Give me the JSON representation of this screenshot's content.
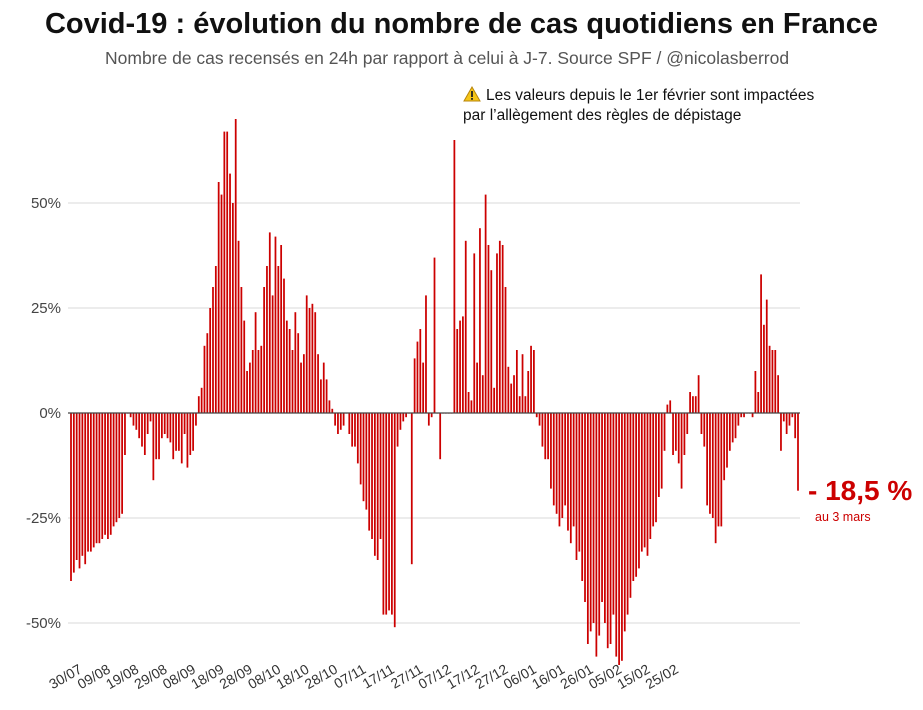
{
  "header": {
    "title": "Covid-19 : évolution du nombre de cas quotidiens en France",
    "subtitle": "Nombre de cas recensés en 24h par rapport à celui à J-7. Source SPF / @nicolasberrod"
  },
  "note": {
    "icon": "warning-icon",
    "line1": "Les valeurs depuis le 1er février sont impactées",
    "line2": "par l’allègement des règles de dépistage"
  },
  "latest": {
    "value_label": "- 18,5 %",
    "date_label": "au 3 mars"
  },
  "colors": {
    "bar": "#cc0000",
    "grid": "#d9d9d9",
    "zero_line": "#444444"
  },
  "chart_data": {
    "type": "bar",
    "title": "Covid-19 : évolution du nombre de cas quotidiens en France",
    "xlabel": "",
    "ylabel": "",
    "ylim": [
      -60,
      70
    ],
    "yticks": [
      -50,
      -25,
      0,
      25,
      50
    ],
    "ytick_labels": [
      "-50%",
      "-25%",
      "0%",
      "25%",
      "50%"
    ],
    "x_tick_labels": [
      "30/07",
      "09/08",
      "19/08",
      "29/08",
      "08/09",
      "18/09",
      "28/09",
      "08/10",
      "18/10",
      "28/10",
      "07/11",
      "17/11",
      "27/11",
      "07/12",
      "17/12",
      "27/12",
      "06/01",
      "16/01",
      "26/01",
      "05/02",
      "15/02",
      "25/02"
    ],
    "x_tick_interval_days": 10,
    "series": [
      {
        "name": "Variation J/J-7 (%)",
        "start_date": "30/07",
        "end_date": "03/03",
        "values": [
          -40,
          -38,
          -35,
          -37,
          -34,
          -36,
          -33,
          -33,
          -32,
          -31,
          -31,
          -30,
          -29,
          -30,
          -29,
          -27,
          -26,
          -25,
          -24,
          -10,
          0,
          -1,
          -3,
          -4,
          -6,
          -8,
          -10,
          -5,
          -2,
          -16,
          -11,
          -11,
          -6,
          -5,
          -6,
          -7,
          -11,
          -9,
          -9,
          -12,
          -5,
          -13,
          -10,
          -9,
          -3,
          4,
          6,
          16,
          19,
          25,
          30,
          35,
          55,
          52,
          67,
          67,
          57,
          50,
          70,
          41,
          30,
          22,
          10,
          12,
          15,
          24,
          15,
          16,
          30,
          35,
          43,
          28,
          42,
          35,
          40,
          32,
          22,
          20,
          15,
          24,
          19,
          12,
          14,
          28,
          25,
          26,
          24,
          14,
          8,
          12,
          8,
          3,
          1,
          -3,
          -5,
          -4,
          -3,
          0,
          -5,
          -8,
          -8,
          -12,
          -17,
          -21,
          -23,
          -28,
          -30,
          -34,
          -35,
          -30,
          -48,
          -48,
          -47,
          -48,
          -51,
          -8,
          -4,
          -2,
          -1,
          0,
          -36,
          13,
          17,
          20,
          12,
          28,
          -3,
          -1,
          37,
          0,
          -11,
          0,
          0,
          0,
          0,
          65,
          20,
          22,
          23,
          41,
          5,
          3,
          38,
          12,
          44,
          9,
          52,
          40,
          34,
          6,
          38,
          41,
          40,
          30,
          11,
          7,
          9,
          15,
          4,
          14,
          4,
          10,
          16,
          15,
          -1,
          -3,
          -8,
          -11,
          -11,
          -18,
          -22,
          -24,
          -27,
          -25,
          -22,
          -28,
          -31,
          -27,
          -35,
          -33,
          -40,
          -45,
          -55,
          -52,
          -50,
          -58,
          -53,
          -45,
          -50,
          -56,
          -55,
          -48,
          -58,
          -60,
          -59,
          -52,
          -48,
          -44,
          -40,
          -39,
          -37,
          -33,
          -32,
          -34,
          -30,
          -27,
          -26,
          -20,
          -18,
          -9,
          2,
          3,
          -10,
          -9,
          -12,
          -18,
          -10,
          -5,
          5,
          4,
          4,
          9,
          -5,
          -8,
          -22,
          -24,
          -25,
          -31,
          -27,
          -27,
          -16,
          -13,
          -9,
          -7,
          -6,
          -3,
          -1,
          -1,
          0,
          0,
          -1,
          10,
          5,
          33,
          21,
          27,
          16,
          15,
          15,
          9,
          -9,
          -2,
          -5,
          -3,
          -1,
          -6,
          -18.5
        ]
      }
    ]
  }
}
